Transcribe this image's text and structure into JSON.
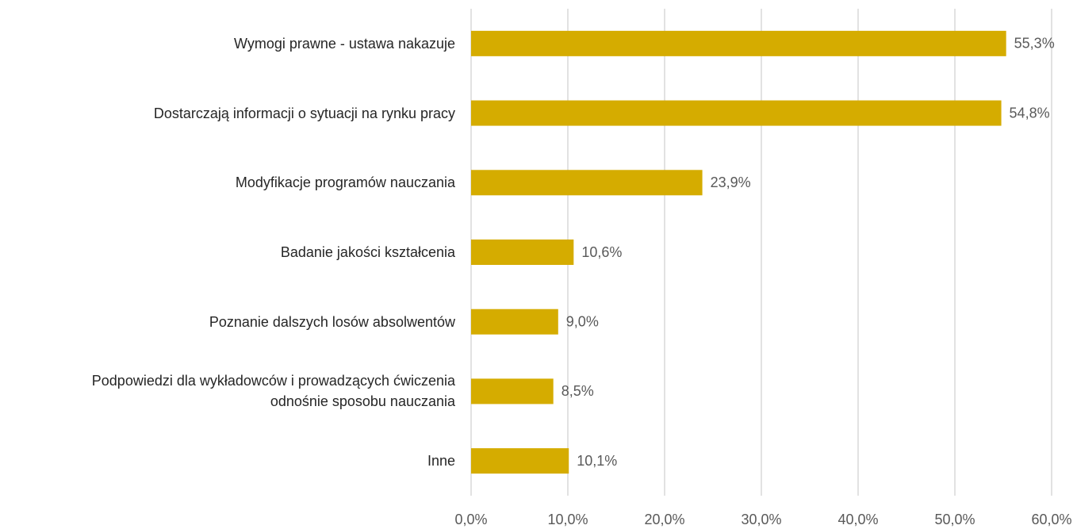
{
  "chart_data": {
    "type": "barh",
    "categories": [
      "Wymogi prawne - ustawa nakazuje",
      "Dostarczają informacji o sytuacji na rynku pracy",
      "Modyfikacje programów nauczania",
      "Badanie jakości kształcenia",
      "Poznanie dalszych losów absolwentów",
      "Podpowiedzi dla wykładowców i prowadzących ćwiczenia\nodnośnie sposobu nauczania",
      "Inne"
    ],
    "values": [
      55.3,
      54.8,
      23.9,
      10.6,
      9.0,
      8.5,
      10.1
    ],
    "value_labels": [
      "55,3%",
      "54,8%",
      "23,9%",
      "10,6%",
      "9,0%",
      "8,5%",
      "10,1%"
    ],
    "color": "#d5ac00",
    "xlim": [
      0,
      60
    ],
    "xticks": [
      {
        "value": 0,
        "label": "0,0%"
      },
      {
        "value": 10,
        "label": "10,0%"
      },
      {
        "value": 20,
        "label": "20,0%"
      },
      {
        "value": 30,
        "label": "30,0%"
      },
      {
        "value": 40,
        "label": "40,0%"
      },
      {
        "value": 50,
        "label": "50,0%"
      },
      {
        "value": 60,
        "label": "60,0%"
      }
    ],
    "grid": true
  }
}
